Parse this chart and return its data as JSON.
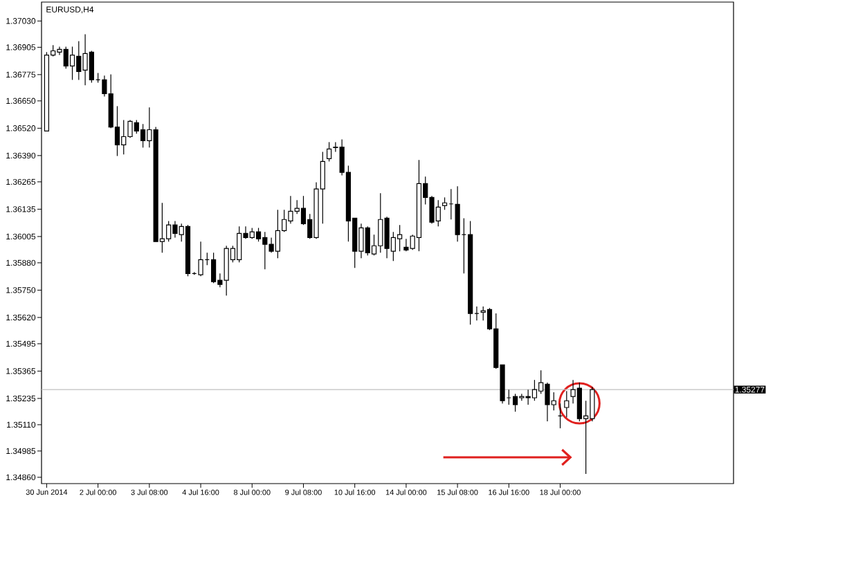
{
  "chart_data": {
    "type": "candlestick",
    "title": "EURUSD,H4",
    "categories": [
      "30 Jun 2014",
      null,
      null,
      null,
      null,
      null,
      null,
      null,
      "2 Jul 00:00",
      null,
      null,
      null,
      null,
      null,
      null,
      null,
      "3 Jul 08:00",
      null,
      null,
      null,
      null,
      null,
      null,
      null,
      "4 Jul 16:00",
      null,
      null,
      null,
      null,
      null,
      null,
      null,
      "8 Jul 00:00",
      null,
      null,
      null,
      null,
      null,
      null,
      null,
      "9 Jul 08:00",
      null,
      null,
      null,
      null,
      null,
      null,
      null,
      "10 Jul 16:00",
      null,
      null,
      null,
      null,
      null,
      null,
      null,
      "14 Jul 00:00",
      null,
      null,
      null,
      null,
      null,
      null,
      null,
      "15 Jul 08:00",
      null,
      null,
      null,
      null,
      null,
      null,
      null,
      "16 Jul 16:00",
      null,
      null,
      null,
      null,
      null,
      null,
      null,
      "18 Jul 00:00",
      null,
      null,
      null,
      null,
      null
    ],
    "ohlc": [
      [
        1.36507,
        1.36882,
        1.36507,
        1.36868
      ],
      [
        1.36868,
        1.36915,
        1.36862,
        1.36888
      ],
      [
        1.36882,
        1.36908,
        1.36868,
        1.36895
      ],
      [
        1.36895,
        1.36908,
        1.36803,
        1.36816
      ],
      [
        1.36816,
        1.36908,
        1.3675,
        1.36868
      ],
      [
        1.36862,
        1.36934,
        1.3675,
        1.3679
      ],
      [
        1.36796,
        1.36967,
        1.36724,
        1.36875
      ],
      [
        1.36882,
        1.36888,
        1.36737,
        1.3675
      ],
      [
        1.3675,
        1.36783,
        1.36737,
        1.3675
      ],
      [
        1.3675,
        1.3677,
        1.36671,
        1.36684
      ],
      [
        1.36684,
        1.36776,
        1.3652,
        1.36526
      ],
      [
        1.36526,
        1.36625,
        1.36388,
        1.36441
      ],
      [
        1.36441,
        1.36559,
        1.36395,
        1.3648
      ],
      [
        1.3648,
        1.36559,
        1.36474,
        1.36553
      ],
      [
        1.36546,
        1.36559,
        1.36494,
        1.36507
      ],
      [
        1.36513,
        1.3654,
        1.36428,
        1.36461
      ],
      [
        1.36461,
        1.36619,
        1.36428,
        1.36513
      ],
      [
        1.36513,
        1.36526,
        1.35981,
        1.35981
      ],
      [
        1.35981,
        1.36165,
        1.35928,
        1.35994
      ],
      [
        1.35994,
        1.36079,
        1.35981,
        1.3606
      ],
      [
        1.3606,
        1.36079,
        1.36,
        1.3602
      ],
      [
        1.36014,
        1.36066,
        1.35981,
        1.36053
      ],
      [
        1.36053,
        1.3606,
        1.35816,
        1.35829
      ],
      [
        1.35829,
        1.35836,
        1.35823,
        1.35829
      ],
      [
        1.35823,
        1.35981,
        1.35816,
        1.35895
      ],
      [
        1.35895,
        1.35928,
        1.35869,
        1.35895
      ],
      [
        1.35895,
        1.35928,
        1.35783,
        1.3579
      ],
      [
        1.35797,
        1.35829,
        1.35764,
        1.35777
      ],
      [
        1.35797,
        1.35961,
        1.35724,
        1.35948
      ],
      [
        1.35895,
        1.35961,
        1.35882,
        1.35948
      ],
      [
        1.35895,
        1.36053,
        1.35882,
        1.3602
      ],
      [
        1.3602,
        1.36053,
        1.35994,
        1.36
      ],
      [
        1.36,
        1.36046,
        1.35994,
        1.36027
      ],
      [
        1.36027,
        1.36046,
        1.35981,
        1.35994
      ],
      [
        1.36,
        1.36027,
        1.35849,
        1.35968
      ],
      [
        1.35968,
        1.36,
        1.35928,
        1.35935
      ],
      [
        1.35935,
        1.36132,
        1.35902,
        1.36033
      ],
      [
        1.36033,
        1.36132,
        1.36027,
        1.36086
      ],
      [
        1.36079,
        1.36198,
        1.36066,
        1.36125
      ],
      [
        1.36125,
        1.36178,
        1.36112,
        1.36139
      ],
      [
        1.36139,
        1.36198,
        1.3606,
        1.36066
      ],
      [
        1.36086,
        1.36112,
        1.35994,
        1.36
      ],
      [
        1.36,
        1.36263,
        1.35994,
        1.36231
      ],
      [
        1.36231,
        1.36408,
        1.36066,
        1.36362
      ],
      [
        1.36375,
        1.36454,
        1.36362,
        1.36421
      ],
      [
        1.36428,
        1.36454,
        1.36408,
        1.3643
      ],
      [
        1.3643,
        1.36467,
        1.36296,
        1.3631
      ],
      [
        1.3631,
        1.36342,
        1.35981,
        1.36079
      ],
      [
        1.36092,
        1.36092,
        1.35856,
        1.35935
      ],
      [
        1.35935,
        1.36066,
        1.35902,
        1.36046
      ],
      [
        1.36046,
        1.36053,
        1.35915,
        1.35928
      ],
      [
        1.35922,
        1.36014,
        1.35915,
        1.35961
      ],
      [
        1.35961,
        1.36211,
        1.35928,
        1.36086
      ],
      [
        1.36092,
        1.36099,
        1.35902,
        1.35948
      ],
      [
        1.35935,
        1.36027,
        1.35889,
        1.36
      ],
      [
        1.35994,
        1.3606,
        1.35935,
        1.36014
      ],
      [
        1.35954,
        1.35994,
        1.35935,
        1.35941
      ],
      [
        1.35948,
        1.36014,
        1.35941,
        1.36007
      ],
      [
        1.36,
        1.36369,
        1.35935,
        1.36257
      ],
      [
        1.36257,
        1.3629,
        1.36158,
        1.36191
      ],
      [
        1.36191,
        1.36198,
        1.36066,
        1.36073
      ],
      [
        1.36079,
        1.36178,
        1.36053,
        1.36145
      ],
      [
        1.36152,
        1.36191,
        1.36132,
        1.36165
      ],
      [
        1.3616,
        1.36231,
        1.36086,
        1.3616
      ],
      [
        1.36158,
        1.36244,
        1.35981,
        1.36014
      ],
      [
        1.36014,
        1.36092,
        1.35829,
        1.36014
      ],
      [
        1.36014,
        1.36079,
        1.35586,
        1.35639
      ],
      [
        1.35639,
        1.35672,
        1.35606,
        1.35639
      ],
      [
        1.35645,
        1.35672,
        1.35606,
        1.35652
      ],
      [
        1.35658,
        1.35665,
        1.3556,
        1.35566
      ],
      [
        1.35566,
        1.35639,
        1.35376,
        1.35382
      ],
      [
        1.35395,
        1.35395,
        1.35211,
        1.35224
      ],
      [
        1.35238,
        1.35277,
        1.35205,
        1.35238
      ],
      [
        1.35244,
        1.35257,
        1.35172,
        1.35205
      ],
      [
        1.35238,
        1.35257,
        1.35224,
        1.35244
      ],
      [
        1.35244,
        1.35277,
        1.35205,
        1.35238
      ],
      [
        1.35238,
        1.35323,
        1.35224,
        1.35277
      ],
      [
        1.3527,
        1.35369,
        1.35257,
        1.3531
      ],
      [
        1.35303,
        1.3531,
        1.35126,
        1.35205
      ],
      [
        1.35205,
        1.35264,
        1.35178,
        1.35224
      ],
      [
        1.35152,
        1.35211,
        1.35093,
        1.35152
      ],
      [
        1.35192,
        1.3527,
        1.35145,
        1.35224
      ],
      [
        1.35244,
        1.35323,
        1.35211,
        1.35277
      ],
      [
        1.35284,
        1.3531,
        1.35126,
        1.35139
      ],
      [
        1.35139,
        1.35224,
        1.34876,
        1.35152
      ],
      [
        1.35139,
        1.3529,
        1.35126,
        1.35277
      ]
    ],
    "color": "#000000",
    "ylim": [
      1.3483,
      1.3712
    ],
    "yticks": [
      {
        "value": 1.3703,
        "label": "1.37030"
      },
      {
        "value": 1.36905,
        "label": "1.36905"
      },
      {
        "value": 1.36775,
        "label": "1.36775"
      },
      {
        "value": 1.3665,
        "label": "1.36650"
      },
      {
        "value": 1.3652,
        "label": "1.36520"
      },
      {
        "value": 1.3639,
        "label": "1.36390"
      },
      {
        "value": 1.36265,
        "label": "1.36265"
      },
      {
        "value": 1.36135,
        "label": "1.36135"
      },
      {
        "value": 1.36005,
        "label": "1.36005"
      },
      {
        "value": 1.3588,
        "label": "1.35880"
      },
      {
        "value": 1.3575,
        "label": "1.35750"
      },
      {
        "value": 1.3562,
        "label": "1.35620"
      },
      {
        "value": 1.35495,
        "label": "1.35495"
      },
      {
        "value": 1.35365,
        "label": "1.35365"
      },
      {
        "value": 1.35235,
        "label": "1.35235"
      },
      {
        "value": 1.3511,
        "label": "1.35110"
      },
      {
        "value": 1.34985,
        "label": "1.34985"
      },
      {
        "value": 1.3486,
        "label": "1.34860"
      }
    ],
    "ref_lines": [
      {
        "axis": "y",
        "value": 1.35277,
        "label": "1.35277",
        "color": "#c0c0c0"
      }
    ]
  }
}
